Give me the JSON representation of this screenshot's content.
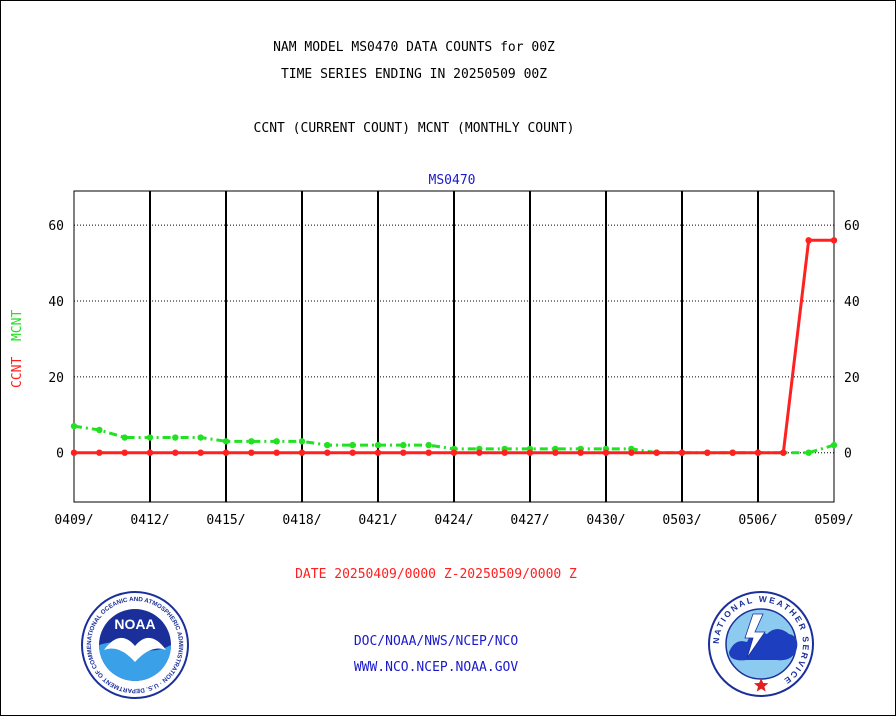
{
  "header": {
    "title_line1": "NAM MODEL MS0470 DATA COUNTS for 00Z",
    "title_line2": "TIME SERIES ENDING IN 20250509 00Z",
    "subtitle": "CCNT (CURRENT COUNT) MCNT (MONTHLY COUNT)"
  },
  "footer": {
    "date_range": "DATE 20250409/0000 Z-20250509/0000 Z",
    "org_line": "DOC/NOAA/NWS/NCEP/NCO",
    "website": "WWW.NCO.NCEP.NOAA.GOV"
  },
  "logos": {
    "noaa_text": "NOAA",
    "noaa_ring_text": "NATIONAL OCEANIC AND ATMOSPHERIC ADMINISTRATION · U.S. DEPARTMENT OF COMMERCE ·",
    "nws_ring_text": "NATIONAL WEATHER SERVICE"
  },
  "colors": {
    "ccnt": "#ff2020",
    "mcnt": "#22e022",
    "station_label": "#1a1acc",
    "footer_blue": "#1a1acc",
    "date_red": "#ff2020"
  },
  "chart_data": {
    "type": "line",
    "title": "MS0470",
    "ylabel_parts": [
      "CCNT",
      "MCNT"
    ],
    "ylim": [
      -13,
      69
    ],
    "y_ticks": [
      0,
      20,
      40,
      60
    ],
    "grid": true,
    "x_tick_labels": [
      "0409/",
      "0412/",
      "0415/",
      "0418/",
      "0421/",
      "0424/",
      "0427/",
      "0430/",
      "0503/",
      "0506/",
      "0509/"
    ],
    "x_days": [
      "0409",
      "0410",
      "0411",
      "0412",
      "0413",
      "0414",
      "0415",
      "0416",
      "0417",
      "0418",
      "0419",
      "0420",
      "0421",
      "0422",
      "0423",
      "0424",
      "0425",
      "0426",
      "0427",
      "0428",
      "0429",
      "0430",
      "0501",
      "0502",
      "0503",
      "0504",
      "0505",
      "0506",
      "0507",
      "0508",
      "0509"
    ],
    "series": [
      {
        "name": "CCNT",
        "color": "#ff2020",
        "style": "solid",
        "values": [
          0,
          0,
          0,
          0,
          0,
          0,
          0,
          0,
          0,
          0,
          0,
          0,
          0,
          0,
          0,
          0,
          0,
          0,
          0,
          0,
          0,
          0,
          0,
          0,
          0,
          0,
          0,
          0,
          0,
          56,
          56
        ]
      },
      {
        "name": "MCNT",
        "color": "#22e022",
        "style": "dashed",
        "values": [
          7,
          6,
          4,
          4,
          4,
          4,
          3,
          3,
          3,
          3,
          2,
          2,
          2,
          2,
          2,
          1,
          1,
          1,
          1,
          1,
          1,
          1,
          1,
          0,
          0,
          0,
          0,
          0,
          0,
          0,
          2
        ]
      }
    ]
  }
}
